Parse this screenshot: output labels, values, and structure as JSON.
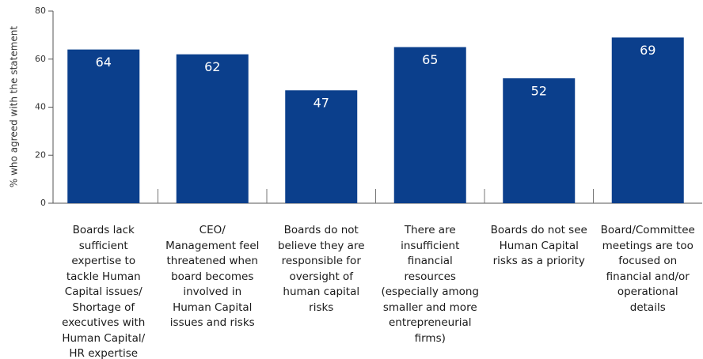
{
  "chart_data": {
    "type": "bar",
    "y_label": "% who agreed with the statement",
    "categories": [
      "Boards lack sufficient expertise to tackle Human Capital issues/ Shortage of executives with Human Capital/ HR expertise",
      "CEO/ Management feel threatened when board becomes involved in Human Capital issues and risks",
      "Boards do not believe they are responsible for oversight of human capital risks",
      "There are insufficient financial resources (especially among smaller and more entrepreneurial firms)",
      "Boards do not see Human Capital risks as a priority",
      "Board/Committee meetings are too focused on financial and/or operational details"
    ],
    "values": [
      64,
      62,
      47,
      65,
      52,
      69
    ],
    "color": "#0b3f8c",
    "ylim": [
      0,
      80
    ],
    "yticks": [
      0,
      20,
      40,
      60,
      80
    ]
  }
}
